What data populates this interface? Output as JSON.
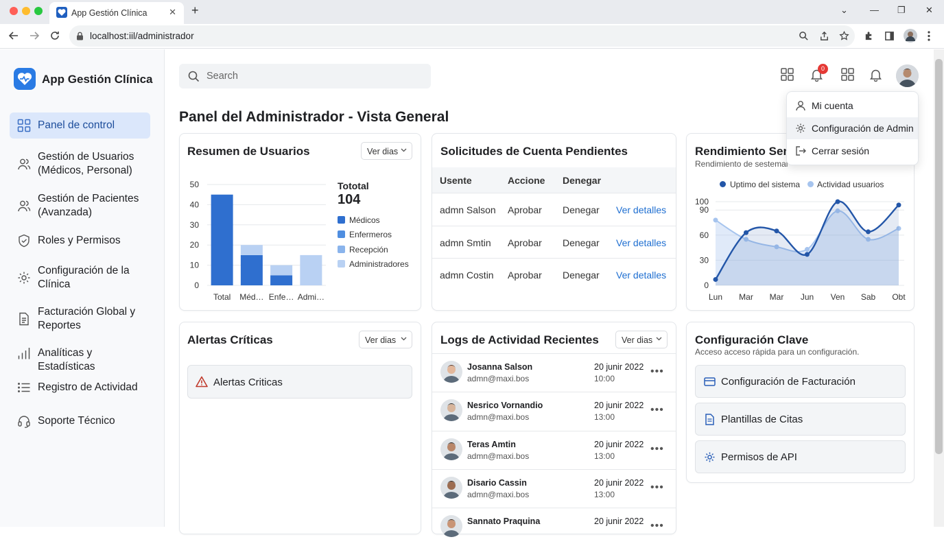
{
  "browser": {
    "tab_title": "App Gestión Clínica",
    "url": "localhost:iil/administrador"
  },
  "sidebar": {
    "brand": "App Gestión Clínica",
    "items": [
      {
        "label": "Panel de control",
        "icon": "grid-icon"
      },
      {
        "label": "Gestión de Usuarios\n(Médicos, Personal)",
        "icon": "users-icon"
      },
      {
        "label": "Gestión de Pacientes\n(Avanzada)",
        "icon": "patients-icon"
      },
      {
        "label": "Roles y Permisos",
        "icon": "shield-icon"
      },
      {
        "label": "Configuración de la\nClínica",
        "icon": "gear-icon"
      },
      {
        "label": "Facturación Global y\nReportes",
        "icon": "document-icon"
      },
      {
        "label": "Analíticas y Estadísticas",
        "icon": "bar-chart-icon"
      },
      {
        "label": "Registro de Actividad",
        "icon": "list-icon"
      },
      {
        "label": "Soporte Técnico",
        "icon": "headset-icon"
      }
    ]
  },
  "header": {
    "search_placeholder": "Search",
    "notification_count": "0"
  },
  "page_title": "Panel del Administrador - Vista General",
  "user_summary": {
    "title": "Resumen de Usuarios",
    "dropdown": "Ver dias",
    "total_label": "Tototal",
    "total_value": "104",
    "legend": [
      {
        "label": "Médicos",
        "color": "#2f6fcf"
      },
      {
        "label": "Enfermeros",
        "color": "#4f8ee0"
      },
      {
        "label": "Recepción",
        "color": "#8ab4ec"
      },
      {
        "label": "Administradores",
        "color": "#b9d1f3"
      }
    ]
  },
  "chart_data": [
    {
      "type": "bar",
      "categories": [
        "Total",
        "Méd…",
        "Enfe…",
        "Admi…"
      ],
      "series": [
        {
          "name": "Médicos",
          "values": [
            45,
            15,
            5,
            0
          ]
        },
        {
          "name": "Administradores",
          "values": [
            0,
            5,
            5,
            15
          ]
        }
      ],
      "ylim": [
        0,
        50
      ],
      "yticks": [
        0,
        10,
        20,
        30,
        40,
        50
      ],
      "colors": [
        "#2f6fcf",
        "#b9d1f3"
      ]
    },
    {
      "type": "area",
      "title": "Rendimiento Sem",
      "categories": [
        "Lun",
        "Mar",
        "Mar",
        "Jun",
        "Ven",
        "Sab",
        "Obt"
      ],
      "series": [
        {
          "name": "Uptimo del sistema",
          "values": [
            7,
            63,
            65,
            37,
            100,
            64,
            96
          ],
          "color": "#2356a8"
        },
        {
          "name": "Actividad usuarios",
          "values": [
            78,
            55,
            46,
            43,
            89,
            55,
            68
          ],
          "color": "#a6c4ee"
        }
      ],
      "ylim": [
        0,
        100
      ],
      "yticks": [
        0,
        30,
        60,
        90,
        100
      ]
    }
  ],
  "pending": {
    "title": "Solicitudes de Cuenta Pendientes",
    "headers": [
      "Usente",
      "Accione",
      "Denegar"
    ],
    "rows": [
      {
        "user": "admn Salson",
        "approve": "Aprobar",
        "deny": "Denegar",
        "details": "Ver detalles"
      },
      {
        "user": "admn Smtin",
        "approve": "Aprobar",
        "deny": "Denegar",
        "details": "Ver detalles"
      },
      {
        "user": "admn Costin",
        "approve": "Aprobar",
        "deny": "Denegar",
        "details": "Ver detalles"
      }
    ]
  },
  "performance": {
    "title": "Rendimiento Sem",
    "subtitle": "Rendimiento de sestemal",
    "legend": [
      "Uptimo del sistema",
      "Actividad usuarios"
    ]
  },
  "alerts": {
    "title": "Alertas Críticas",
    "dropdown": "Ver dias",
    "item": "Alertas Criticas"
  },
  "logs": {
    "title": "Logs de Actividad Recientes",
    "dropdown": "Ver dias",
    "rows": [
      {
        "name": "Josanna Salson",
        "email": "admn@maxi.bos",
        "date": "20 junir 2022",
        "time": "10:00"
      },
      {
        "name": "Nesrico Vornandio",
        "email": "admn@maxi.bos",
        "date": "20 junir 2022",
        "time": "13:00"
      },
      {
        "name": "Teras Amtin",
        "email": "admn@maxi.bos",
        "date": "20 junir 2022",
        "time": "13:00"
      },
      {
        "name": "Disario Cassin",
        "email": "admn@maxi.bos",
        "date": "20 junir 2022",
        "time": "13:00"
      },
      {
        "name": "Sannato Praquina",
        "email": "",
        "date": "20 junir 2022",
        "time": ""
      }
    ]
  },
  "config": {
    "title": "Configuración Clave",
    "subtitle": "Acceso acceso rápida para un configuración.",
    "items": [
      "Configuración de Facturación",
      "Plantillas de Citas",
      "Permisos de API"
    ]
  },
  "user_menu": {
    "items": [
      "Mi cuenta",
      "Configuración de Admin",
      "Cerrar sesión"
    ]
  }
}
